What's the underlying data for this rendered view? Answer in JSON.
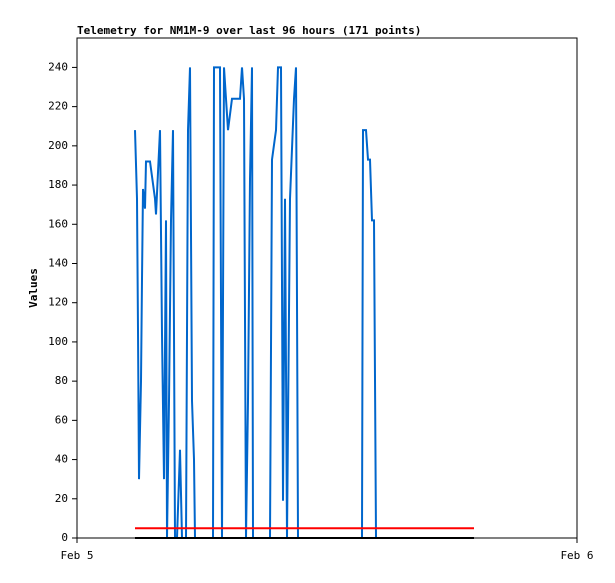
{
  "chart_data": {
    "type": "line",
    "title": "Telemetry for NM1M-9 over last 96 hours (171 points)",
    "y_label": "Values",
    "xlim": [
      0,
      1
    ],
    "xticks": [
      {
        "value": 0,
        "label": "Feb 5"
      },
      {
        "value": 1,
        "label": "Feb 6"
      }
    ],
    "ylim": [
      0,
      255
    ],
    "yticks": [
      0,
      20,
      40,
      60,
      80,
      100,
      120,
      140,
      160,
      180,
      200,
      220,
      240
    ],
    "grid": false,
    "series": [
      {
        "color": "#0066cc",
        "x": [
          0.116,
          0.12,
          0.122,
          0.124,
          0.128,
          0.13,
          0.132,
          0.136,
          0.138,
          0.146,
          0.156,
          0.158,
          0.166,
          0.17,
          0.174,
          0.178,
          0.18,
          0.184,
          0.188,
          0.192,
          0.196,
          0.2,
          0.206,
          0.21,
          0.218,
          0.222,
          0.226,
          0.23,
          0.234,
          0.236,
          0.272,
          0.274,
          0.286,
          0.29,
          0.294,
          0.302,
          0.31,
          0.326,
          0.33,
          0.334,
          0.338,
          0.342,
          0.346,
          0.35,
          0.352,
          0.386,
          0.39,
          0.398,
          0.402,
          0.408,
          0.412,
          0.416,
          0.42,
          0.426,
          0.434,
          0.438,
          0.442,
          0.57,
          0.572,
          0.578,
          0.582,
          0.586,
          0.59,
          0.594,
          0.598
        ],
        "values": [
          208,
          173,
          106,
          30,
          80,
          132,
          178,
          168,
          192,
          192,
          173,
          165,
          208,
          104,
          30,
          162,
          0,
          70,
          162,
          208,
          0,
          0,
          45,
          0,
          0,
          208,
          240,
          70,
          40,
          0,
          0,
          240,
          240,
          0,
          240,
          208,
          224,
          224,
          240,
          224,
          0,
          70,
          183,
          240,
          0,
          0,
          193,
          208,
          240,
          240,
          19,
          173,
          0,
          173,
          224,
          240,
          0,
          0,
          208,
          208,
          193,
          193,
          162,
          162,
          0
        ]
      },
      {
        "color": "#ff0000",
        "x": [
          0.116,
          0.794
        ],
        "values": [
          5,
          5
        ]
      },
      {
        "color": "#000000",
        "x": [
          0.116,
          0.794
        ],
        "values": [
          0,
          0
        ]
      }
    ]
  }
}
